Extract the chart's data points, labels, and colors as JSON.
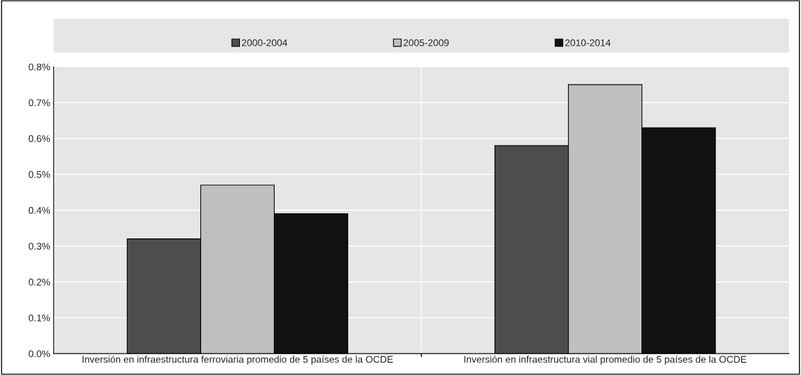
{
  "chart_data": {
    "type": "bar",
    "categories": [
      "Inversión en infraestructura ferroviaria promedio de 5 países de la OCDE",
      "Inversión en infraestructura vial promedio de 5 países de la OCDE"
    ],
    "series": [
      {
        "name": "2000-2004",
        "color": "#4d4d4d",
        "values": [
          0.32,
          0.58
        ]
      },
      {
        "name": "2005-2009",
        "color": "#bfbfbf",
        "values": [
          0.47,
          0.75
        ]
      },
      {
        "name": "2010-2014",
        "color": "#111111",
        "values": [
          0.39,
          0.63
        ]
      }
    ],
    "ylim": [
      0,
      0.8
    ],
    "yticks": [
      {
        "value": 0,
        "label": "0.0%"
      },
      {
        "value": 0.1,
        "label": "0.1%"
      },
      {
        "value": 0.2,
        "label": "0.2%"
      },
      {
        "value": 0.3,
        "label": "0.3%"
      },
      {
        "value": 0.4,
        "label": "0.4%"
      },
      {
        "value": 0.5,
        "label": "0.5%"
      },
      {
        "value": 0.6,
        "label": "0.6%"
      },
      {
        "value": 0.7,
        "label": "0.7%"
      },
      {
        "value": 0.8,
        "label": "0.8%"
      }
    ],
    "grid": "y",
    "legend": "top"
  }
}
